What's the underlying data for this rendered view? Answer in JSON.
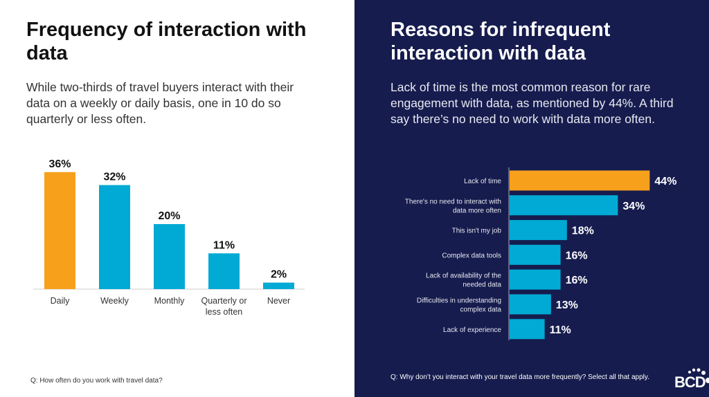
{
  "left": {
    "title": "Frequency of interaction with data",
    "subtitle": "While two-thirds of travel buyers interact with their data on a weekly or daily basis, one in 10 do so quarterly or less often.",
    "footnote": "Q: How often do you work with travel data?"
  },
  "right": {
    "title": "Reasons for infrequent interaction with data",
    "subtitle": "Lack of time is the most common reason for rare engagement with data, as mentioned by 44%. A third say there’s no need to work with data more often.",
    "footnote": "Q: Why don’t you interact with your travel data more frequently? Select all that apply.",
    "logo": "BCD"
  },
  "colors": {
    "highlight": "#f7a01c",
    "bar": "#00aad4",
    "navy": "#161c4e"
  },
  "chart_data": [
    {
      "type": "bar",
      "orientation": "vertical",
      "categories": [
        "Daily",
        "Weekly",
        "Monthly",
        "Quarterly or less often",
        "Never"
      ],
      "values": [
        36,
        32,
        20,
        11,
        2
      ],
      "data_labels": [
        "36%",
        "32%",
        "20%",
        "11%",
        "2%"
      ],
      "highlight_index": 0,
      "grid": false
    },
    {
      "type": "bar",
      "orientation": "horizontal",
      "categories": [
        "Lack of time",
        "There's no need to interact with data more often",
        "This isn't my job",
        "Complex data tools",
        "Lack of availability of the needed data",
        "Difficulties in understanding complex data",
        "Lack of experience"
      ],
      "values": [
        44,
        34,
        18,
        16,
        16,
        13,
        11
      ],
      "data_labels": [
        "44%",
        "34%",
        "18%",
        "16%",
        "16%",
        "13%",
        "11%"
      ],
      "highlight_index": 0,
      "grid": false
    }
  ]
}
